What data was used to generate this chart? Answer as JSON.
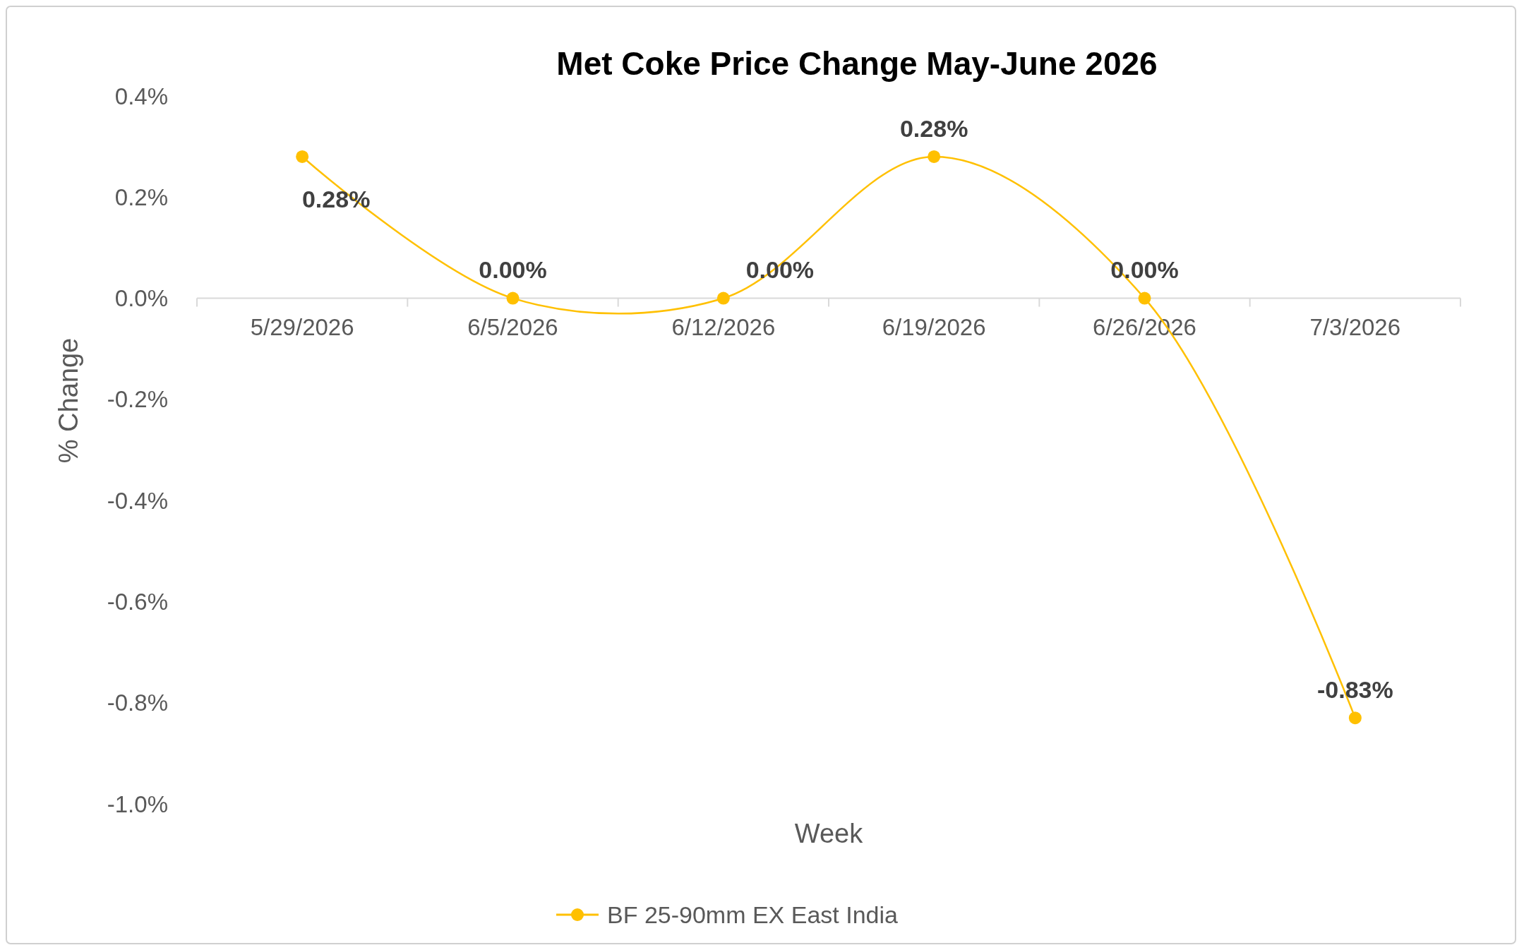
{
  "chart_data": {
    "type": "line",
    "title": "Met Coke Price Change May-June 2026",
    "xlabel": "Week",
    "ylabel": "% Change",
    "categories": [
      "5/29/2026",
      "6/5/2026",
      "6/12/2026",
      "6/19/2026",
      "6/26/2026",
      "7/3/2026"
    ],
    "series": [
      {
        "name": "BF 25-90mm EX East India",
        "color": "#ffc000",
        "values": [
          0.28,
          0,
          0,
          0.28,
          0,
          -0.83
        ],
        "value_labels": [
          "0.28%",
          "0.00%",
          "0.00%",
          "0.28%",
          "0.00%",
          "-0.83%"
        ]
      }
    ],
    "ylim": [
      -1.0,
      0.4
    ],
    "yticks": [
      {
        "value": -1.0,
        "label": "-1.0%"
      },
      {
        "value": -0.8,
        "label": "-0.8%"
      },
      {
        "value": -0.6,
        "label": "-0.6%"
      },
      {
        "value": -0.4,
        "label": "-0.4%"
      },
      {
        "value": -0.2,
        "label": "-0.2%"
      },
      {
        "value": 0,
        "label": "0.0%"
      },
      {
        "value": 0.2,
        "label": "0.2%"
      },
      {
        "value": 0.4,
        "label": "0.4%"
      }
    ],
    "legend": "bottom",
    "marker": "circle",
    "line_style": "solid",
    "grid": false
  }
}
